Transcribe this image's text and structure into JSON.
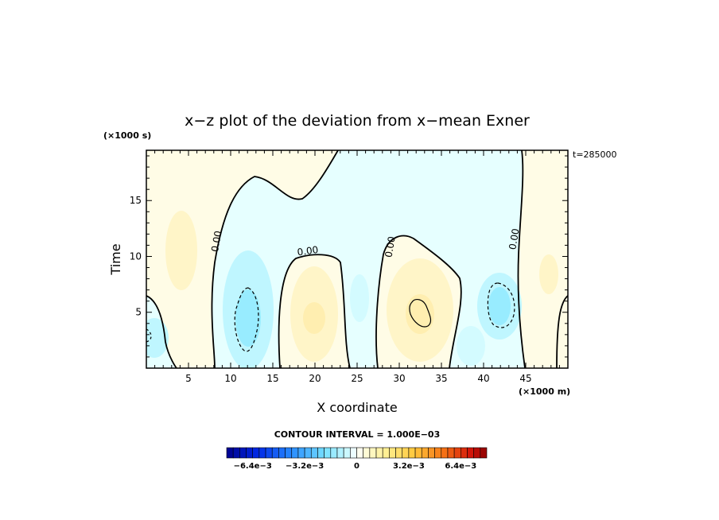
{
  "chart_data": {
    "type": "contour",
    "title": "x−z plot of the deviation from x−mean Exner",
    "xlabel": "X coordinate",
    "ylabel": "Time",
    "x_unit": "(×1000 m)",
    "y_unit": "(×1000 s)",
    "time_label": "t=285000",
    "xlim": [
      0,
      50
    ],
    "ylim": [
      0,
      19.5
    ],
    "x_ticks": [
      5,
      10,
      15,
      20,
      25,
      30,
      35,
      40,
      45
    ],
    "y_ticks": [
      5,
      10,
      15
    ],
    "contour_interval_text": "CONTOUR INTERVAL = 1.000E−03",
    "contour_labels": [
      {
        "text": "0.00",
        "x": 8.7,
        "y": 11.3
      },
      {
        "text": "0.00",
        "x": 19.2,
        "y": 10.2
      },
      {
        "text": "0.00",
        "x": 29.3,
        "y": 10.8
      },
      {
        "text": "0.00",
        "x": 44.0,
        "y": 11.5
      }
    ],
    "colorbar": {
      "min": -0.008,
      "max": 0.008,
      "tick_labels": [
        "−6.4e−3",
        "−3.2e−3",
        "0",
        "3.2e−3",
        "6.4e−3"
      ],
      "tick_values": [
        -0.0064,
        -0.0032,
        0,
        0.0032,
        0.0064
      ]
    },
    "grid": false
  }
}
